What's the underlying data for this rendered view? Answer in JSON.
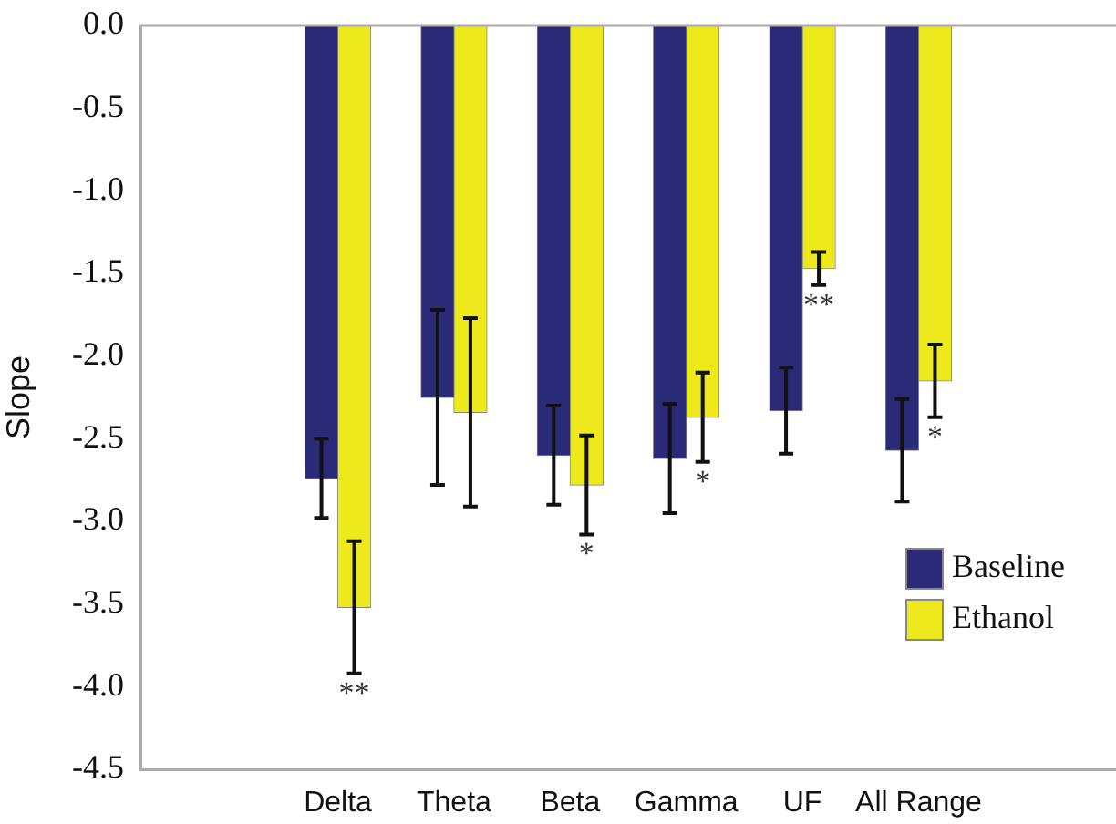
{
  "chart_data": {
    "type": "bar",
    "ylabel": "Slope",
    "categories": [
      "Delta",
      "Theta",
      "Beta",
      "Gamma",
      "UF",
      "All Range"
    ],
    "series": [
      {
        "name": "Baseline",
        "color": "#2b2a78",
        "values": [
          -2.74,
          -2.25,
          -2.6,
          -2.62,
          -2.33,
          -2.57
        ],
        "errors": [
          0.24,
          0.53,
          0.3,
          0.33,
          0.26,
          0.31
        ]
      },
      {
        "name": "Ethanol",
        "color": "#ede91a",
        "values": [
          -3.52,
          -2.34,
          -2.78,
          -2.37,
          -1.47,
          -2.15
        ],
        "errors": [
          0.4,
          0.57,
          0.3,
          0.27,
          0.1,
          0.22
        ]
      }
    ],
    "ylim": [
      -4.5,
      0
    ],
    "yticks": [
      {
        "value": -4.5,
        "label": "-4.5"
      },
      {
        "value": -4,
        "label": "-4.0"
      },
      {
        "value": -3.5,
        "label": "-3.5"
      },
      {
        "value": -3,
        "label": "-3.0"
      },
      {
        "value": -2.5,
        "label": "-2.5"
      },
      {
        "value": -2,
        "label": "-2.0"
      },
      {
        "value": -1.5,
        "label": "-1.5"
      },
      {
        "value": -1,
        "label": "-1.0"
      },
      {
        "value": -0.5,
        "label": "-0.5"
      },
      {
        "value": 0,
        "label": "0.0"
      }
    ],
    "annotations": [
      {
        "text": "**",
        "x": "Delta",
        "y": -3.52
      },
      {
        "text": "*",
        "x": "Beta",
        "y": -2.78
      },
      {
        "text": "*",
        "x": "Gamma",
        "y": -2.37
      },
      {
        "text": "**",
        "x": "UF",
        "y": -1.47
      },
      {
        "text": "*",
        "x": "All Range",
        "y": -2.15
      }
    ],
    "grid": false,
    "legend": "bottom right"
  }
}
